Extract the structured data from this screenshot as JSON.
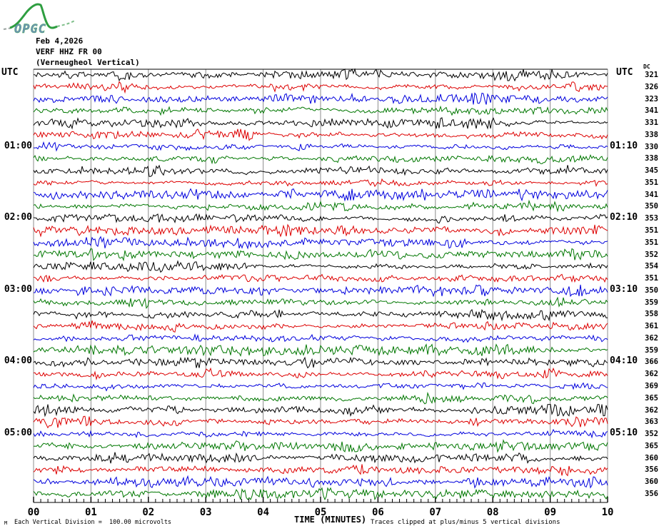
{
  "logo": {
    "text": "OPGC"
  },
  "header": {
    "date": "Feb 4,2026",
    "station": "VERF HHZ FR 00",
    "location": "(Verneugheol Vertical)"
  },
  "axes": {
    "left_utc": "UTC",
    "right_utc": "UTC",
    "dc_header": "DC",
    "x_title": "TIME (MINUTES)",
    "x_ticks": [
      "00",
      "01",
      "02",
      "03",
      "04",
      "05",
      "06",
      "07",
      "08",
      "09",
      "10"
    ]
  },
  "footer": {
    "mark": "M",
    "scale_note": "Each Vertical Division =  100.00 microvolts",
    "clip_note": "Traces clipped at plus/minus 5 vertical divisions"
  },
  "chart_data": {
    "type": "line",
    "subtype": "helicorder_seismogram",
    "station": "VERF HHZ FR 00",
    "title_block": [
      "Feb 4,2026",
      "VERF HHZ FR 00",
      "(Verneugheol Vertical)"
    ],
    "x_axis": {
      "label": "TIME (MINUTES)",
      "range_minutes": [
        0,
        10
      ],
      "major_tick_every": 1,
      "minor_divisions_per_major": 8
    },
    "minutes_per_row": 10,
    "grid": true,
    "grid_color": "#8c8c8c",
    "trace_color_cycle": [
      "#000000",
      "#dd0000",
      "#0000dd",
      "#007700"
    ],
    "clip_divisions": 5,
    "rows": [
      {
        "start": "00:00",
        "dc": 321
      },
      {
        "start": "00:10",
        "dc": 326
      },
      {
        "start": "00:20",
        "dc": 323
      },
      {
        "start": "00:30",
        "dc": 341
      },
      {
        "start": "00:40",
        "dc": 331
      },
      {
        "start": "00:50",
        "dc": 338
      },
      {
        "start": "01:00",
        "dc": 330
      },
      {
        "start": "01:10",
        "dc": 338
      },
      {
        "start": "01:20",
        "dc": 345
      },
      {
        "start": "01:30",
        "dc": 351
      },
      {
        "start": "01:40",
        "dc": 341
      },
      {
        "start": "01:50",
        "dc": 350
      },
      {
        "start": "02:00",
        "dc": 353
      },
      {
        "start": "02:10",
        "dc": 351
      },
      {
        "start": "02:20",
        "dc": 351
      },
      {
        "start": "02:30",
        "dc": 352
      },
      {
        "start": "02:40",
        "dc": 354
      },
      {
        "start": "02:50",
        "dc": 351
      },
      {
        "start": "03:00",
        "dc": 350
      },
      {
        "start": "03:10",
        "dc": 359
      },
      {
        "start": "03:20",
        "dc": 358
      },
      {
        "start": "03:30",
        "dc": 361
      },
      {
        "start": "03:40",
        "dc": 362
      },
      {
        "start": "03:50",
        "dc": 359
      },
      {
        "start": "04:00",
        "dc": 366
      },
      {
        "start": "04:10",
        "dc": 362
      },
      {
        "start": "04:20",
        "dc": 369
      },
      {
        "start": "04:30",
        "dc": 365
      },
      {
        "start": "04:40",
        "dc": 362
      },
      {
        "start": "04:50",
        "dc": 363
      },
      {
        "start": "05:00",
        "dc": 352
      },
      {
        "start": "05:10",
        "dc": 365
      },
      {
        "start": "05:20",
        "dc": 360
      },
      {
        "start": "05:30",
        "dc": 356
      },
      {
        "start": "05:40",
        "dc": 360
      },
      {
        "start": "05:50",
        "dc": 356
      }
    ],
    "left_hour_labels": [
      {
        "row": 6,
        "label": "01:00"
      },
      {
        "row": 12,
        "label": "02:00"
      },
      {
        "row": 18,
        "label": "03:00"
      },
      {
        "row": 24,
        "label": "04:00"
      },
      {
        "row": 30,
        "label": "05:00"
      }
    ],
    "right_hour_labels": [
      {
        "row": 6,
        "label": "01:10"
      },
      {
        "row": 12,
        "label": "02:10"
      },
      {
        "row": 18,
        "label": "03:10"
      },
      {
        "row": 24,
        "label": "04:10"
      },
      {
        "row": 30,
        "label": "05:10"
      }
    ]
  }
}
